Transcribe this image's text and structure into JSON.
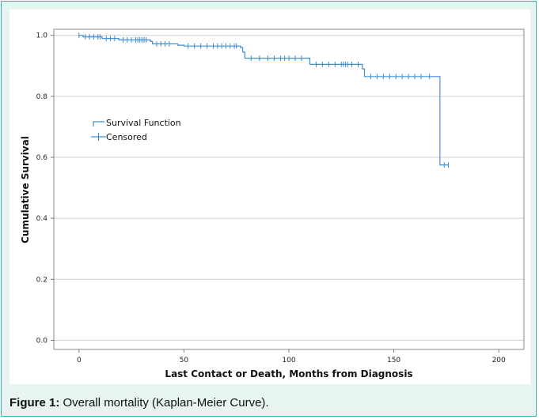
{
  "figure": {
    "caption_label": "Figure 1:",
    "caption_text": " Overall mortality (Kaplan-Meier Curve)."
  },
  "colors": {
    "frame_border": "#35b3a8",
    "frame_bg": "#e7f4f2",
    "curve": "#3c8fd8",
    "grid": "#cfcfcf"
  },
  "chart_data": {
    "type": "line",
    "xlabel": "Last Contact or Death, Months from Diagnosis",
    "ylabel": "Cumulative Survival",
    "xlim": [
      -12,
      212
    ],
    "ylim": [
      -0.03,
      1.02
    ],
    "x_ticks": [
      0,
      50,
      100,
      150,
      200
    ],
    "y_ticks": [
      0.0,
      0.2,
      0.4,
      0.6,
      0.8,
      1.0
    ],
    "x_tick_labels": [
      "0",
      "50",
      "100",
      "150",
      "200"
    ],
    "y_tick_labels": [
      "0.0",
      "0.2",
      "0.4",
      "0.6",
      "0.8",
      "1.0"
    ],
    "grid": "horizontal",
    "legend": {
      "placement": "upper-left",
      "entries": [
        "Survival Function",
        "Censored"
      ]
    },
    "series": [
      {
        "name": "Survival Function",
        "step": [
          [
            0,
            1.0
          ],
          [
            2,
            0.995
          ],
          [
            11,
            0.99
          ],
          [
            19,
            0.985
          ],
          [
            34,
            0.98
          ],
          [
            35,
            0.972
          ],
          [
            47,
            0.968
          ],
          [
            50,
            0.965
          ],
          [
            77,
            0.96
          ],
          [
            78,
            0.945
          ],
          [
            79,
            0.925
          ],
          [
            110,
            0.905
          ],
          [
            135,
            0.89
          ],
          [
            136,
            0.865
          ],
          [
            172,
            0.575
          ],
          [
            176,
            0.575
          ]
        ]
      },
      {
        "name": "Censored",
        "points": [
          [
            0,
            1.0
          ],
          [
            3,
            0.995
          ],
          [
            5,
            0.995
          ],
          [
            7,
            0.995
          ],
          [
            9,
            0.995
          ],
          [
            10,
            0.995
          ],
          [
            13,
            0.99
          ],
          [
            15,
            0.99
          ],
          [
            17,
            0.99
          ],
          [
            21,
            0.985
          ],
          [
            23,
            0.985
          ],
          [
            25,
            0.985
          ],
          [
            27,
            0.985
          ],
          [
            28,
            0.985
          ],
          [
            29,
            0.985
          ],
          [
            30,
            0.985
          ],
          [
            31,
            0.985
          ],
          [
            32,
            0.985
          ],
          [
            37,
            0.972
          ],
          [
            39,
            0.972
          ],
          [
            41,
            0.972
          ],
          [
            43,
            0.972
          ],
          [
            52,
            0.965
          ],
          [
            55,
            0.965
          ],
          [
            58,
            0.965
          ],
          [
            61,
            0.965
          ],
          [
            64,
            0.965
          ],
          [
            66,
            0.965
          ],
          [
            68,
            0.965
          ],
          [
            70,
            0.965
          ],
          [
            72,
            0.965
          ],
          [
            74,
            0.965
          ],
          [
            75,
            0.965
          ],
          [
            82,
            0.925
          ],
          [
            86,
            0.925
          ],
          [
            90,
            0.925
          ],
          [
            93,
            0.925
          ],
          [
            96,
            0.925
          ],
          [
            98,
            0.925
          ],
          [
            100,
            0.925
          ],
          [
            103,
            0.925
          ],
          [
            106,
            0.925
          ],
          [
            113,
            0.905
          ],
          [
            116,
            0.905
          ],
          [
            119,
            0.905
          ],
          [
            122,
            0.905
          ],
          [
            125,
            0.905
          ],
          [
            126,
            0.905
          ],
          [
            127,
            0.905
          ],
          [
            128,
            0.905
          ],
          [
            130,
            0.905
          ],
          [
            133,
            0.905
          ],
          [
            139,
            0.865
          ],
          [
            142,
            0.865
          ],
          [
            145,
            0.865
          ],
          [
            148,
            0.865
          ],
          [
            151,
            0.865
          ],
          [
            154,
            0.865
          ],
          [
            157,
            0.865
          ],
          [
            160,
            0.865
          ],
          [
            163,
            0.865
          ],
          [
            167,
            0.865
          ],
          [
            174,
            0.575
          ],
          [
            176,
            0.575
          ]
        ]
      }
    ]
  }
}
